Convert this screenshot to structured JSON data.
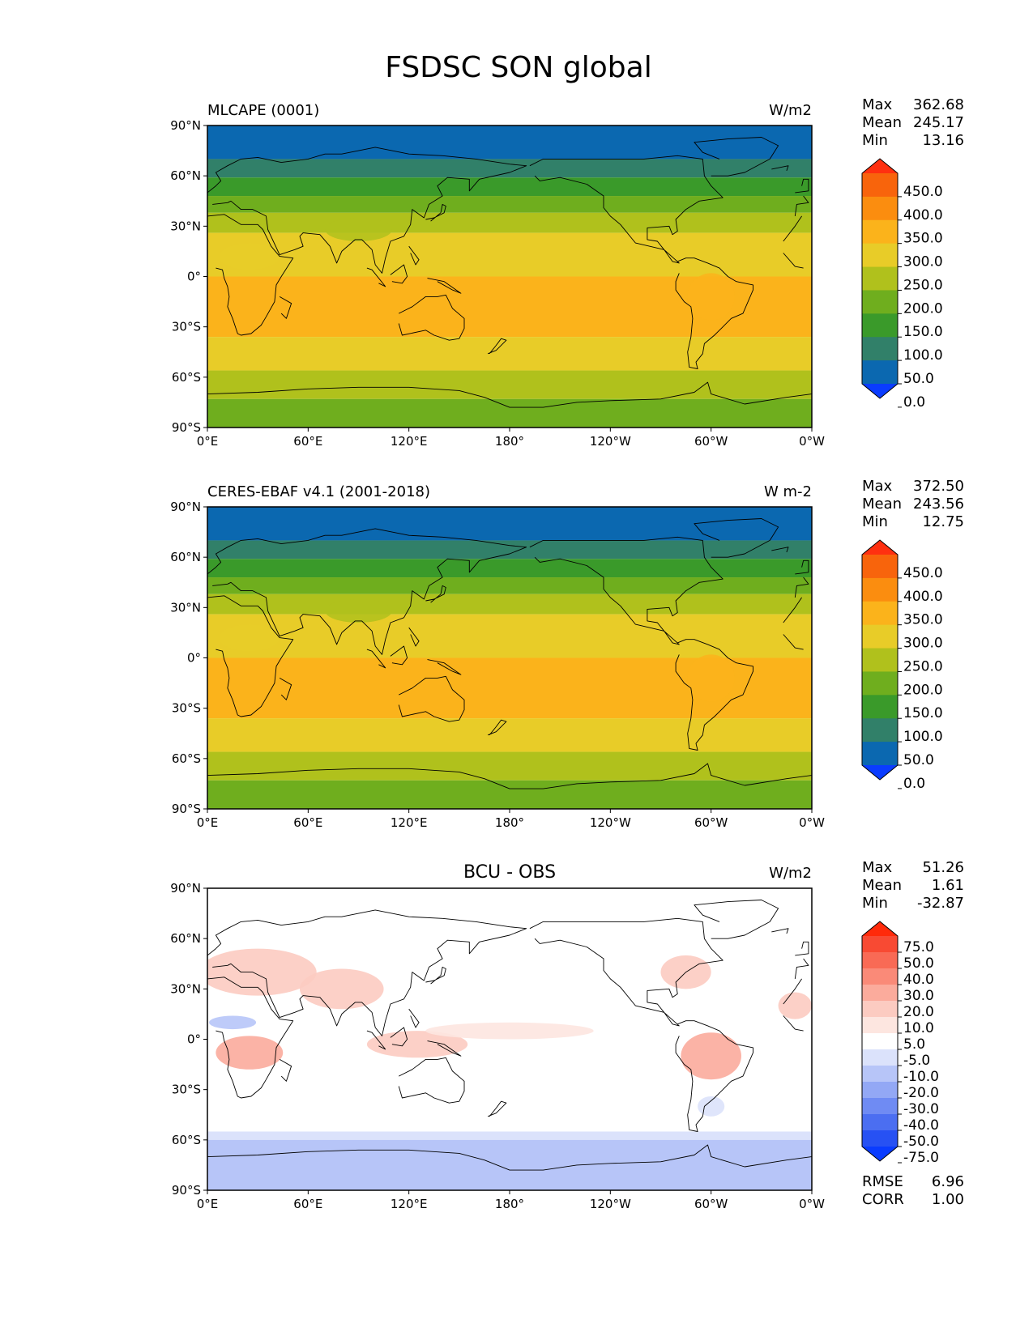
{
  "title": "FSDSC SON global",
  "panels": [
    {
      "id": "test",
      "left_title": "MLCAPE (0001)",
      "center_title": "",
      "units": "W/m2",
      "stats": [
        {
          "label": "Max",
          "value": "362.68"
        },
        {
          "label": "Mean",
          "value": "245.17"
        },
        {
          "label": "Min",
          "value": "13.16"
        }
      ],
      "colorbar_labels": [
        "450.0",
        "400.0",
        "350.0",
        "300.0",
        "250.0",
        "200.0",
        "150.0",
        "100.0",
        "50.0",
        "0.0"
      ],
      "colorbar_colors": [
        "#ff3010",
        "#f8640c",
        "#fb8d0f",
        "#fbb31b",
        "#e8cc28",
        "#b0c11c",
        "#6fae1e",
        "#3a9a2a",
        "#318069",
        "#0b68b0",
        "#0a3cff"
      ],
      "field": "abs"
    },
    {
      "id": "ref",
      "left_title": "CERES-EBAF v4.1 (2001-2018)",
      "center_title": "",
      "units": "W m-2",
      "stats": [
        {
          "label": "Max",
          "value": "372.50"
        },
        {
          "label": "Mean",
          "value": "243.56"
        },
        {
          "label": "Min",
          "value": "12.75"
        }
      ],
      "colorbar_labels": [
        "450.0",
        "400.0",
        "350.0",
        "300.0",
        "250.0",
        "200.0",
        "150.0",
        "100.0",
        "50.0",
        "0.0"
      ],
      "colorbar_colors": [
        "#ff3010",
        "#f8640c",
        "#fb8d0f",
        "#fbb31b",
        "#e8cc28",
        "#b0c11c",
        "#6fae1e",
        "#3a9a2a",
        "#318069",
        "#0b68b0",
        "#0a3cff"
      ],
      "field": "abs"
    },
    {
      "id": "diff",
      "left_title": "",
      "center_title": "BCU - OBS",
      "units": "W/m2",
      "stats": [
        {
          "label": "Max",
          "value": "51.26"
        },
        {
          "label": "Mean",
          "value": "1.61"
        },
        {
          "label": "Min",
          "value": "-32.87"
        }
      ],
      "colorbar_labels": [
        "75.0",
        "50.0",
        "40.0",
        "30.0",
        "20.0",
        "10.0",
        "5.0",
        "-5.0",
        "-10.0",
        "-20.0",
        "-30.0",
        "-40.0",
        "-50.0",
        "-75.0"
      ],
      "colorbar_colors": [
        "#ff2a0a",
        "#f84a33",
        "#f96a55",
        "#fa8a78",
        "#fbab9c",
        "#fccbc1",
        "#fde6e0",
        "#ffffff",
        "#dbe2fb",
        "#b7c5f8",
        "#93a8f5",
        "#6f8bf3",
        "#4b6ef1",
        "#2751f3",
        "#0a3cff"
      ],
      "field": "diff",
      "metrics": [
        {
          "label": "RMSE",
          "value": "6.96"
        },
        {
          "label": "CORR",
          "value": "1.00"
        }
      ]
    }
  ],
  "lat_ticks": [
    "90°N",
    "60°N",
    "30°N",
    "0°",
    "30°S",
    "60°S",
    "90°S"
  ],
  "lon_ticks": [
    "0°E",
    "60°E",
    "120°E",
    "180°",
    "120°W",
    "60°W",
    "0°W"
  ],
  "bands": {
    "abs": [
      {
        "lat_from": 90,
        "lat_to": 70,
        "color": "#0b68b0"
      },
      {
        "lat_from": 70,
        "lat_to": 59,
        "color": "#318069"
      },
      {
        "lat_from": 59,
        "lat_to": 48,
        "color": "#3a9a2a"
      },
      {
        "lat_from": 48,
        "lat_to": 38,
        "color": "#6fae1e"
      },
      {
        "lat_from": 38,
        "lat_to": 26,
        "color": "#b0c11c"
      },
      {
        "lat_from": 26,
        "lat_to": 0,
        "color": "#e8cc28"
      },
      {
        "lat_from": 0,
        "lat_to": -36,
        "color": "#fbb31b"
      },
      {
        "lat_from": -36,
        "lat_to": -56,
        "color": "#e8cc28"
      },
      {
        "lat_from": -56,
        "lat_to": -73,
        "color": "#b0c11c"
      },
      {
        "lat_from": -73,
        "lat_to": -90,
        "color": "#6fae1e"
      }
    ],
    "diff": [
      {
        "lat_from": 90,
        "lat_to": -55,
        "color": "#ffffff"
      },
      {
        "lat_from": -55,
        "lat_to": -60,
        "color": "#dbe2fb"
      },
      {
        "lat_from": -60,
        "lat_to": -90,
        "color": "#b7c5f8"
      }
    ]
  },
  "diff_patches": [
    {
      "lon": 30,
      "lat": 40,
      "rx": 35,
      "ry": 14,
      "color": "#fccbc1"
    },
    {
      "lon": 80,
      "lat": 30,
      "rx": 25,
      "ry": 12,
      "color": "#fccbc1"
    },
    {
      "lon": 25,
      "lat": -8,
      "rx": 20,
      "ry": 10,
      "color": "#fbab9c"
    },
    {
      "lon": 125,
      "lat": -3,
      "rx": 30,
      "ry": 8,
      "color": "#fccbc1"
    },
    {
      "lon": 180,
      "lat": 5,
      "rx": 50,
      "ry": 5,
      "color": "#fde6e0"
    },
    {
      "lon": 300,
      "lat": -10,
      "rx": 18,
      "ry": 14,
      "color": "#fbab9c"
    },
    {
      "lon": 285,
      "lat": 40,
      "rx": 15,
      "ry": 10,
      "color": "#fccbc1"
    },
    {
      "lon": 350,
      "lat": 20,
      "rx": 10,
      "ry": 8,
      "color": "#fccbc1"
    },
    {
      "lon": 15,
      "lat": 10,
      "rx": 14,
      "ry": 4,
      "color": "#b7c5f8"
    },
    {
      "lon": 300,
      "lat": -40,
      "rx": 8,
      "ry": 6,
      "color": "#dbe2fb"
    }
  ]
}
